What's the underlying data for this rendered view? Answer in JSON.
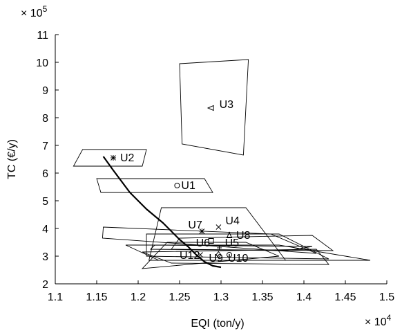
{
  "chart_data": {
    "type": "scatter",
    "xlabel": "EQI (ton/y)",
    "ylabel": "TC (€/y)",
    "x_multiplier": "× 10^4",
    "y_multiplier": "× 10^5",
    "xlim": [
      1.1,
      1.5
    ],
    "ylim": [
      2,
      11
    ],
    "xticks": [
      "1.1",
      "1.15",
      "1.2",
      "1.25",
      "1.3",
      "1.35",
      "1.4",
      "1.45",
      "1.5"
    ],
    "yticks": [
      "2",
      "3",
      "4",
      "5",
      "6",
      "7",
      "8",
      "9",
      "10",
      "11"
    ],
    "points": [
      {
        "label": "U1",
        "x": 1.247,
        "y": 5.55,
        "marker": "circle"
      },
      {
        "label": "U2",
        "x": 1.17,
        "y": 6.55,
        "marker": "star"
      },
      {
        "label": "U3",
        "x": 1.288,
        "y": 8.35,
        "marker": "triangle-left"
      },
      {
        "label": "U4",
        "x": 1.297,
        "y": 4.05,
        "marker": "x"
      },
      {
        "label": "U5",
        "x": 1.298,
        "y": 3.3,
        "marker": "plus"
      },
      {
        "label": "U6",
        "x": 1.288,
        "y": 3.55,
        "marker": "square"
      },
      {
        "label": "U7",
        "x": 1.277,
        "y": 3.9,
        "marker": "star"
      },
      {
        "label": "U8",
        "x": 1.31,
        "y": 3.75,
        "marker": "triangle"
      },
      {
        "label": "U9",
        "x": 1.297,
        "y": 3.05,
        "marker": "diamond"
      },
      {
        "label": "U10",
        "x": 1.31,
        "y": 3.05,
        "marker": "circle"
      },
      {
        "label": "U12",
        "x": 1.275,
        "y": 3.05,
        "marker": "x"
      }
    ],
    "regions": [
      {
        "label": "U1",
        "polygon": [
          [
            1.15,
            5.8
          ],
          [
            1.28,
            5.8
          ],
          [
            1.29,
            5.3
          ],
          [
            1.155,
            5.3
          ]
        ]
      },
      {
        "label": "U2",
        "polygon": [
          [
            1.133,
            6.85
          ],
          [
            1.21,
            6.85
          ],
          [
            1.205,
            6.25
          ],
          [
            1.122,
            6.25
          ]
        ]
      },
      {
        "label": "U3",
        "polygon": [
          [
            1.25,
            9.95
          ],
          [
            1.333,
            10.1
          ],
          [
            1.327,
            6.65
          ],
          [
            1.253,
            7.05
          ]
        ]
      },
      {
        "label": "U4",
        "polygon": [
          [
            1.228,
            4.75
          ],
          [
            1.33,
            4.75
          ],
          [
            1.378,
            2.85
          ],
          [
            1.213,
            2.85
          ]
        ]
      },
      {
        "label": "U5",
        "polygon": [
          [
            1.22,
            3.4
          ],
          [
            1.41,
            3.35
          ],
          [
            1.38,
            3.2
          ],
          [
            1.215,
            3.25
          ]
        ]
      },
      {
        "label": "U6",
        "polygon": [
          [
            1.21,
            3.8
          ],
          [
            1.37,
            3.8
          ],
          [
            1.43,
            2.9
          ],
          [
            1.21,
            3.0
          ]
        ]
      },
      {
        "label": "U7",
        "polygon": [
          [
            1.158,
            4.05
          ],
          [
            1.36,
            3.8
          ],
          [
            1.415,
            3.1
          ],
          [
            1.157,
            3.65
          ]
        ]
      },
      {
        "label": "U8",
        "polygon": [
          [
            1.25,
            3.65
          ],
          [
            1.41,
            3.75
          ],
          [
            1.435,
            3.2
          ],
          [
            1.24,
            3.25
          ]
        ]
      },
      {
        "label": "U9",
        "polygon": [
          [
            1.185,
            3.4
          ],
          [
            1.37,
            3.4
          ],
          [
            1.48,
            2.85
          ],
          [
            1.225,
            2.85
          ]
        ]
      },
      {
        "label": "U10",
        "polygon": [
          [
            1.205,
            3.15
          ],
          [
            1.415,
            3.25
          ],
          [
            1.43,
            2.7
          ],
          [
            1.24,
            2.75
          ]
        ]
      },
      {
        "label": "U12",
        "polygon": [
          [
            1.235,
            3.5
          ],
          [
            1.33,
            3.5
          ],
          [
            1.37,
            3.0
          ],
          [
            1.205,
            2.55
          ]
        ]
      }
    ],
    "pareto_front": {
      "x": [
        1.158,
        1.17,
        1.19,
        1.21,
        1.23,
        1.25,
        1.26,
        1.27,
        1.28,
        1.29,
        1.3
      ],
      "y": [
        6.6,
        6.1,
        5.3,
        4.7,
        4.2,
        3.6,
        3.35,
        3.05,
        2.8,
        2.65,
        2.6
      ]
    }
  }
}
